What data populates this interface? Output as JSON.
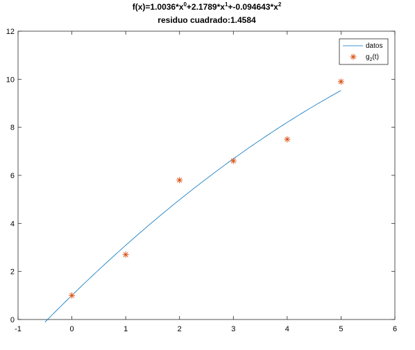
{
  "chart_data": {
    "type": "line",
    "title": {
      "line1": {
        "prefix": "f(x)=1.0036*x",
        "exp0": "0",
        "mid1": "+2.1789*x",
        "exp1": "1",
        "mid2": "+-0.094643*x",
        "exp2": "2"
      },
      "line2": "residuo cuadrado:1.4584"
    },
    "xlim": [
      -1,
      6
    ],
    "ylim": [
      0,
      12
    ],
    "xticks": [
      "-1",
      "0",
      "1",
      "2",
      "3",
      "4",
      "5",
      "6"
    ],
    "yticks": [
      "0",
      "2",
      "4",
      "6",
      "8",
      "10",
      "12"
    ],
    "grid": false,
    "legend_position": "top-right",
    "series": [
      {
        "name": "datos",
        "kind": "line",
        "color": "#0072bd",
        "coefficients": [
          1.0036,
          2.1789,
          -0.094643
        ],
        "x_range": [
          -0.5,
          5
        ]
      },
      {
        "name_base": "g",
        "name_sub": "2",
        "name_rest": "(t)",
        "kind": "scatter",
        "marker": "asterisk",
        "color": "#d95319",
        "x": [
          0,
          1,
          2,
          3,
          4,
          5
        ],
        "y": [
          1.0,
          2.7,
          5.8,
          6.6,
          7.5,
          9.9
        ]
      }
    ]
  }
}
